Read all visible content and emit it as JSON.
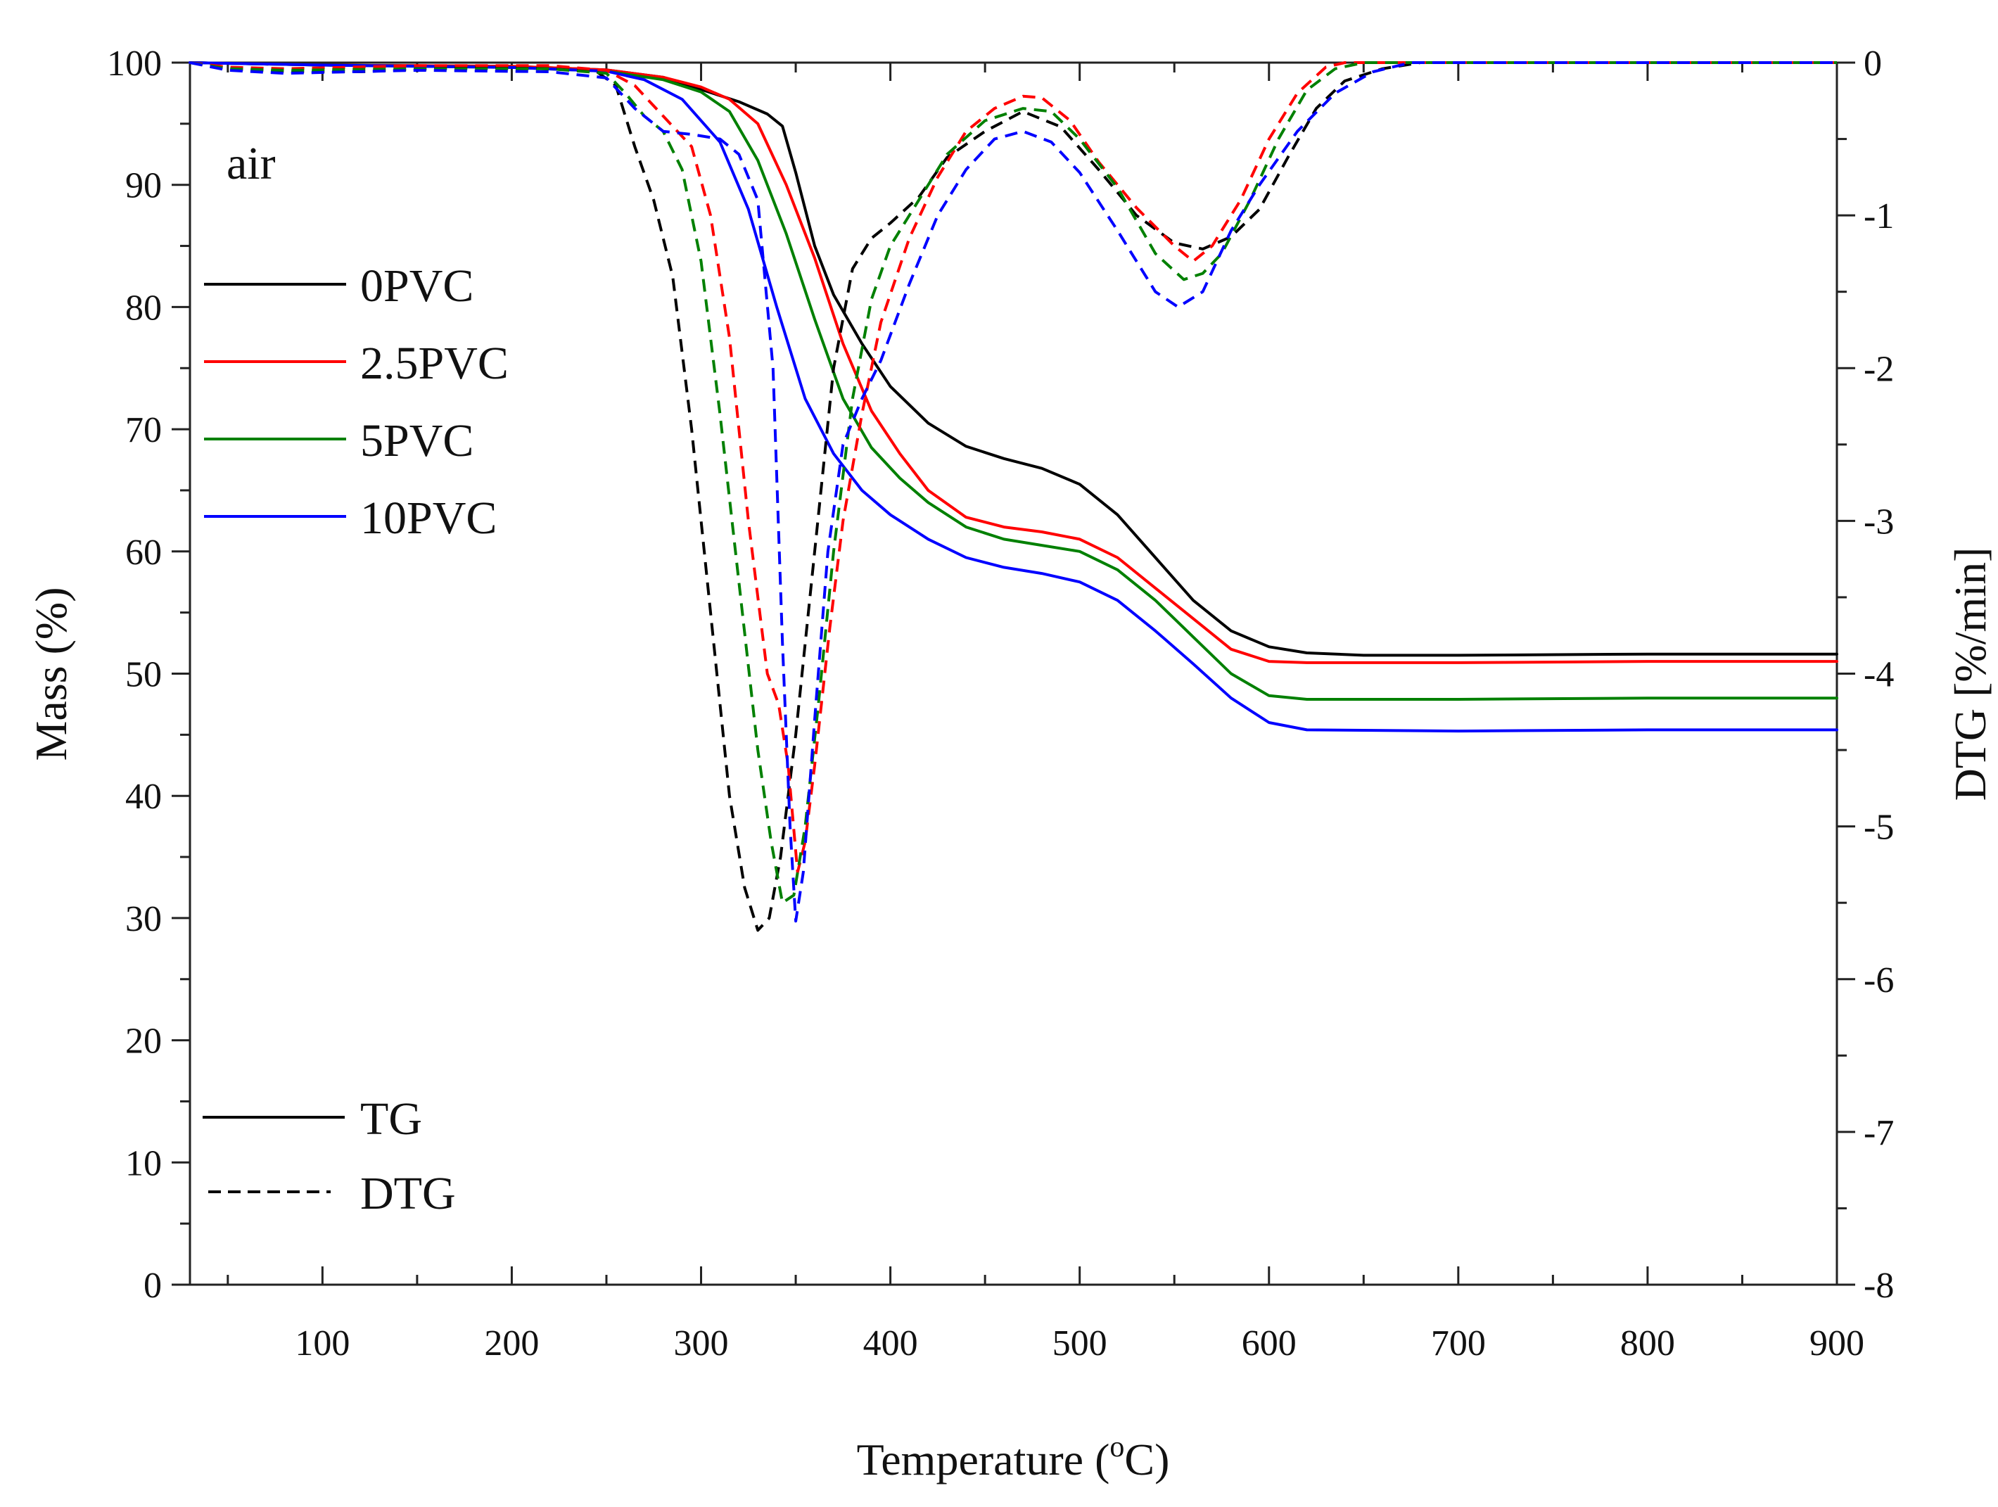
{
  "chart_data": {
    "type": "line",
    "title": "",
    "annotation": "air",
    "xlabel_main": "Temperature (",
    "xlabel_sup": "o",
    "xlabel_end": "C)",
    "ylabel": "Mass (%)",
    "y2label": "DTG [%/min]",
    "xlim": [
      30,
      900
    ],
    "ylim": [
      0,
      100
    ],
    "y2lim": [
      -8,
      0
    ],
    "x_ticks": [
      100,
      200,
      300,
      400,
      500,
      600,
      700,
      800,
      900
    ],
    "x_tick_labels": [
      "100",
      "200",
      "300",
      "400",
      "500",
      "600",
      "700",
      "800",
      "900"
    ],
    "y_ticks": [
      0,
      10,
      20,
      30,
      40,
      50,
      60,
      70,
      80,
      90,
      100
    ],
    "y_tick_labels": [
      "0",
      "10",
      "20",
      "30",
      "40",
      "50",
      "60",
      "70",
      "80",
      "90",
      "100"
    ],
    "y2_ticks": [
      0,
      -1,
      -2,
      -3,
      -4,
      -5,
      -6,
      -7,
      -8
    ],
    "y2_tick_labels": [
      "0",
      "-1",
      "-2",
      "-3",
      "-4",
      "-5",
      "-6",
      "-7",
      "-8"
    ],
    "legend": {
      "position": "top-left",
      "entries": [
        "0PVC",
        "2.5PVC",
        "5PVC",
        "10PVC"
      ],
      "style_entries": [
        "TG",
        "DTG"
      ]
    },
    "colors": {
      "0PVC": "#000000",
      "2.5PVC": "#ff0000",
      "5PVC": "#008000",
      "10PVC": "#0000ff"
    },
    "series": [
      {
        "name": "0PVC",
        "kind": "TG",
        "axis": "left",
        "color": "#000000",
        "points": [
          [
            30,
            100
          ],
          [
            100,
            99.8
          ],
          [
            200,
            99.7
          ],
          [
            250,
            99.4
          ],
          [
            280,
            98.8
          ],
          [
            300,
            97.8
          ],
          [
            320,
            96.8
          ],
          [
            335,
            95.8
          ],
          [
            343,
            94.8
          ],
          [
            350,
            91
          ],
          [
            360,
            85
          ],
          [
            370,
            81
          ],
          [
            385,
            77
          ],
          [
            400,
            73.5
          ],
          [
            420,
            70.5
          ],
          [
            440,
            68.6
          ],
          [
            460,
            67.6
          ],
          [
            480,
            66.8
          ],
          [
            500,
            65.5
          ],
          [
            520,
            63
          ],
          [
            540,
            59.5
          ],
          [
            560,
            56
          ],
          [
            580,
            53.5
          ],
          [
            600,
            52.2
          ],
          [
            620,
            51.7
          ],
          [
            650,
            51.5
          ],
          [
            700,
            51.5
          ],
          [
            800,
            51.6
          ],
          [
            900,
            51.6
          ]
        ]
      },
      {
        "name": "2.5PVC",
        "kind": "TG",
        "axis": "left",
        "color": "#ff0000",
        "points": [
          [
            30,
            100
          ],
          [
            100,
            99.8
          ],
          [
            200,
            99.7
          ],
          [
            250,
            99.4
          ],
          [
            280,
            98.8
          ],
          [
            300,
            98
          ],
          [
            315,
            97
          ],
          [
            330,
            95
          ],
          [
            345,
            90
          ],
          [
            360,
            84
          ],
          [
            375,
            77
          ],
          [
            390,
            71.5
          ],
          [
            405,
            68
          ],
          [
            420,
            65
          ],
          [
            440,
            62.8
          ],
          [
            460,
            62
          ],
          [
            480,
            61.6
          ],
          [
            500,
            61
          ],
          [
            520,
            59.5
          ],
          [
            540,
            57
          ],
          [
            560,
            54.5
          ],
          [
            580,
            52
          ],
          [
            600,
            51
          ],
          [
            620,
            50.9
          ],
          [
            700,
            50.9
          ],
          [
            800,
            51
          ],
          [
            900,
            51
          ]
        ]
      },
      {
        "name": "5PVC",
        "kind": "TG",
        "axis": "left",
        "color": "#008000",
        "points": [
          [
            30,
            100
          ],
          [
            100,
            99.8
          ],
          [
            200,
            99.6
          ],
          [
            250,
            99.3
          ],
          [
            280,
            98.6
          ],
          [
            300,
            97.6
          ],
          [
            315,
            96
          ],
          [
            330,
            92
          ],
          [
            345,
            86
          ],
          [
            360,
            79
          ],
          [
            375,
            72.5
          ],
          [
            390,
            68.5
          ],
          [
            405,
            66
          ],
          [
            420,
            64
          ],
          [
            440,
            62
          ],
          [
            460,
            61
          ],
          [
            480,
            60.5
          ],
          [
            500,
            60
          ],
          [
            520,
            58.5
          ],
          [
            540,
            56
          ],
          [
            560,
            53
          ],
          [
            580,
            50
          ],
          [
            600,
            48.2
          ],
          [
            620,
            47.9
          ],
          [
            700,
            47.9
          ],
          [
            800,
            48
          ],
          [
            900,
            48
          ]
        ]
      },
      {
        "name": "10PVC",
        "kind": "TG",
        "axis": "left",
        "color": "#0000ff",
        "points": [
          [
            30,
            100
          ],
          [
            100,
            99.8
          ],
          [
            200,
            99.6
          ],
          [
            250,
            99.3
          ],
          [
            270,
            98.6
          ],
          [
            290,
            97
          ],
          [
            310,
            93.5
          ],
          [
            325,
            88
          ],
          [
            340,
            80
          ],
          [
            355,
            72.5
          ],
          [
            370,
            68
          ],
          [
            385,
            65
          ],
          [
            400,
            63
          ],
          [
            420,
            61
          ],
          [
            440,
            59.5
          ],
          [
            460,
            58.7
          ],
          [
            480,
            58.2
          ],
          [
            500,
            57.5
          ],
          [
            520,
            56
          ],
          [
            540,
            53.5
          ],
          [
            560,
            50.8
          ],
          [
            580,
            48
          ],
          [
            600,
            46
          ],
          [
            620,
            45.4
          ],
          [
            700,
            45.3
          ],
          [
            800,
            45.4
          ],
          [
            900,
            45.4
          ]
        ]
      },
      {
        "name": "0PVC",
        "kind": "DTG",
        "axis": "right",
        "color": "#000000",
        "points": [
          [
            30,
            0
          ],
          [
            50,
            -0.04
          ],
          [
            80,
            -0.06
          ],
          [
            120,
            -0.06
          ],
          [
            180,
            -0.03
          ],
          [
            220,
            -0.04
          ],
          [
            245,
            -0.06
          ],
          [
            255,
            -0.15
          ],
          [
            265,
            -0.55
          ],
          [
            275,
            -0.9
          ],
          [
            285,
            -1.4
          ],
          [
            295,
            -2.4
          ],
          [
            305,
            -3.6
          ],
          [
            315,
            -4.8
          ],
          [
            323,
            -5.4
          ],
          [
            330,
            -5.68
          ],
          [
            336,
            -5.6
          ],
          [
            342,
            -5.2
          ],
          [
            350,
            -4.4
          ],
          [
            360,
            -3.2
          ],
          [
            370,
            -2.0
          ],
          [
            380,
            -1.35
          ],
          [
            390,
            -1.15
          ],
          [
            400,
            -1.05
          ],
          [
            415,
            -0.88
          ],
          [
            430,
            -0.62
          ],
          [
            450,
            -0.45
          ],
          [
            470,
            -0.32
          ],
          [
            490,
            -0.42
          ],
          [
            510,
            -0.7
          ],
          [
            530,
            -1.0
          ],
          [
            550,
            -1.18
          ],
          [
            565,
            -1.22
          ],
          [
            580,
            -1.14
          ],
          [
            595,
            -0.96
          ],
          [
            610,
            -0.62
          ],
          [
            625,
            -0.3
          ],
          [
            640,
            -0.12
          ],
          [
            660,
            -0.04
          ],
          [
            680,
            0
          ],
          [
            900,
            0
          ]
        ]
      },
      {
        "name": "2.5PVC",
        "kind": "DTG",
        "axis": "right",
        "color": "#ff0000",
        "points": [
          [
            30,
            0
          ],
          [
            50,
            -0.03
          ],
          [
            80,
            -0.04
          ],
          [
            150,
            -0.02
          ],
          [
            220,
            -0.02
          ],
          [
            250,
            -0.05
          ],
          [
            265,
            -0.15
          ],
          [
            280,
            -0.35
          ],
          [
            295,
            -0.55
          ],
          [
            305,
            -1.0
          ],
          [
            315,
            -1.8
          ],
          [
            325,
            -3.0
          ],
          [
            335,
            -4.0
          ],
          [
            341,
            -4.2
          ],
          [
            346,
            -4.6
          ],
          [
            351,
            -5.3
          ],
          [
            355,
            -5.1
          ],
          [
            360,
            -4.6
          ],
          [
            368,
            -3.7
          ],
          [
            375,
            -3.0
          ],
          [
            385,
            -2.3
          ],
          [
            395,
            -1.7
          ],
          [
            410,
            -1.15
          ],
          [
            425,
            -0.75
          ],
          [
            440,
            -0.45
          ],
          [
            455,
            -0.3
          ],
          [
            470,
            -0.22
          ],
          [
            480,
            -0.23
          ],
          [
            495,
            -0.38
          ],
          [
            510,
            -0.65
          ],
          [
            530,
            -0.95
          ],
          [
            550,
            -1.2
          ],
          [
            560,
            -1.3
          ],
          [
            570,
            -1.2
          ],
          [
            585,
            -0.9
          ],
          [
            600,
            -0.5
          ],
          [
            615,
            -0.2
          ],
          [
            630,
            -0.03
          ],
          [
            640,
            0
          ],
          [
            900,
            0
          ]
        ]
      },
      {
        "name": "5PVC",
        "kind": "DTG",
        "axis": "right",
        "color": "#008000",
        "points": [
          [
            30,
            0
          ],
          [
            50,
            -0.04
          ],
          [
            80,
            -0.05
          ],
          [
            150,
            -0.04
          ],
          [
            220,
            -0.04
          ],
          [
            250,
            -0.07
          ],
          [
            260,
            -0.2
          ],
          [
            270,
            -0.35
          ],
          [
            280,
            -0.45
          ],
          [
            290,
            -0.7
          ],
          [
            300,
            -1.3
          ],
          [
            310,
            -2.3
          ],
          [
            320,
            -3.4
          ],
          [
            330,
            -4.5
          ],
          [
            337,
            -5.1
          ],
          [
            343,
            -5.5
          ],
          [
            349,
            -5.45
          ],
          [
            355,
            -5.0
          ],
          [
            362,
            -4.2
          ],
          [
            370,
            -3.2
          ],
          [
            380,
            -2.2
          ],
          [
            390,
            -1.55
          ],
          [
            400,
            -1.2
          ],
          [
            415,
            -0.9
          ],
          [
            430,
            -0.6
          ],
          [
            450,
            -0.38
          ],
          [
            470,
            -0.3
          ],
          [
            485,
            -0.32
          ],
          [
            500,
            -0.5
          ],
          [
            520,
            -0.82
          ],
          [
            540,
            -1.25
          ],
          [
            555,
            -1.42
          ],
          [
            565,
            -1.38
          ],
          [
            575,
            -1.25
          ],
          [
            590,
            -0.9
          ],
          [
            605,
            -0.5
          ],
          [
            620,
            -0.18
          ],
          [
            635,
            -0.04
          ],
          [
            650,
            0
          ],
          [
            900,
            0
          ]
        ]
      },
      {
        "name": "10PVC",
        "kind": "DTG",
        "axis": "right",
        "color": "#0000ff",
        "points": [
          [
            30,
            0
          ],
          [
            50,
            -0.05
          ],
          [
            80,
            -0.07
          ],
          [
            150,
            -0.05
          ],
          [
            220,
            -0.06
          ],
          [
            250,
            -0.1
          ],
          [
            265,
            -0.3
          ],
          [
            280,
            -0.45
          ],
          [
            295,
            -0.47
          ],
          [
            310,
            -0.5
          ],
          [
            320,
            -0.6
          ],
          [
            330,
            -0.9
          ],
          [
            338,
            -2.0
          ],
          [
            343,
            -3.8
          ],
          [
            347,
            -5.0
          ],
          [
            350,
            -5.62
          ],
          [
            354,
            -5.3
          ],
          [
            360,
            -4.3
          ],
          [
            367,
            -3.2
          ],
          [
            375,
            -2.5
          ],
          [
            385,
            -2.2
          ],
          [
            395,
            -1.95
          ],
          [
            410,
            -1.45
          ],
          [
            425,
            -1.0
          ],
          [
            440,
            -0.7
          ],
          [
            455,
            -0.5
          ],
          [
            470,
            -0.45
          ],
          [
            485,
            -0.52
          ],
          [
            500,
            -0.72
          ],
          [
            520,
            -1.1
          ],
          [
            540,
            -1.5
          ],
          [
            552,
            -1.6
          ],
          [
            565,
            -1.5
          ],
          [
            580,
            -1.1
          ],
          [
            595,
            -0.8
          ],
          [
            615,
            -0.45
          ],
          [
            635,
            -0.2
          ],
          [
            655,
            -0.06
          ],
          [
            675,
            0
          ],
          [
            900,
            0
          ]
        ]
      }
    ]
  }
}
